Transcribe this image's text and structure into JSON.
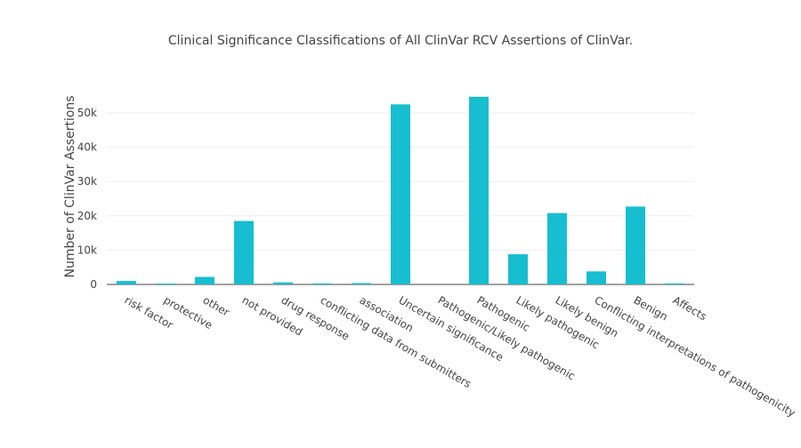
{
  "chart_data": {
    "type": "bar",
    "title": "Clinical Significance Classifications of All ClinVar RCV Assertions of ClinVar.",
    "xlabel": "",
    "ylabel": "Number of ClinVar Assertions",
    "ylim": [
      0,
      57000
    ],
    "yticks": [
      0,
      10000,
      20000,
      30000,
      40000,
      50000
    ],
    "ytick_labels": [
      "0",
      "10k",
      "20k",
      "30k",
      "40k",
      "50k"
    ],
    "grid": true,
    "legend": "none",
    "bar_color": "#17becf",
    "categories": [
      "risk factor",
      "protective",
      "other",
      "not provided",
      "drug response",
      "conflicting data from submitters",
      "association",
      "Uncertain significance",
      "Pathogenic/Likely pathogenic",
      "Pathogenic",
      "Likely pathogenic",
      "Likely benign",
      "Conflicting interpretations of pathogenicity",
      "Benign",
      "Affects"
    ],
    "values": [
      1000,
      250,
      2200,
      18500,
      600,
      300,
      400,
      52500,
      0,
      54700,
      8800,
      20800,
      3800,
      22700,
      300
    ]
  }
}
